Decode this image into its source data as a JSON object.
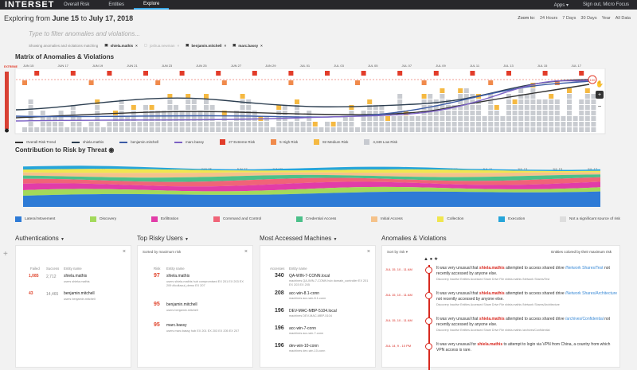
{
  "app": {
    "logo": "INTERSET",
    "nav": [
      "Overall Risk",
      "Entities",
      "Explore"
    ],
    "active_nav": 2,
    "apps_label": "Apps",
    "signout_label": "Sign out, Micro Focus"
  },
  "header": {
    "title_prefix": "Exploring from ",
    "start": "June 15",
    "to": " to ",
    "end": "July 17, 2018",
    "zoom_label": "Zoom to:",
    "zoom_options": [
      "24 Hours",
      "7 Days",
      "30 Days",
      "Year",
      "All Data"
    ]
  },
  "filter": {
    "placeholder": "Type to filter anomalies and violations...",
    "showing_label": "Showing anomalies and violations matching",
    "chips": [
      {
        "label": "shiela.mathis",
        "dim": false
      },
      {
        "label": "joshua.newman",
        "dim": true
      },
      {
        "label": "benjamin.mitchell",
        "dim": false
      },
      {
        "label": "marc.bassy",
        "dim": false
      }
    ]
  },
  "matrix": {
    "title": "Matrix of Anomalies & Violations",
    "extreme_label": "EXTREME",
    "dates": [
      "JUN 15",
      "JUN 17",
      "JUN 19",
      "JUN 21",
      "JUN 23",
      "JUN 25",
      "JUN 27",
      "JUN 29",
      "JUL 01",
      "JUL 03",
      "JUL 05",
      "JUL 07",
      "JUL 09",
      "JUL 11",
      "JUL 13",
      "JUL 15",
      "JUL 17"
    ],
    "badge_value": "100",
    "legend": [
      {
        "kind": "line",
        "label": "Overall Risk Trend",
        "color": "#333333"
      },
      {
        "kind": "line",
        "label": "shiela.mathis",
        "color": "#2c3e50"
      },
      {
        "kind": "line",
        "label": "benjamin.mitchell",
        "color": "#3b5ba5"
      },
      {
        "kind": "line",
        "label": "marc.bassy",
        "color": "#7b61c4"
      },
      {
        "kind": "box",
        "label": "27 Extreme Risk",
        "color": "#e23c2a"
      },
      {
        "kind": "box",
        "label": "5 High Risk",
        "color": "#f08a4b"
      },
      {
        "kind": "box",
        "label": "82 Medium Risk",
        "color": "#f5b942"
      },
      {
        "kind": "box",
        "label": "4,349 Low Risk",
        "color": "#c7cad0"
      }
    ]
  },
  "contribution": {
    "title": "Contribution to Risk by Threat",
    "dates": [
      "JUN 15",
      "JUN 17",
      "JUN 19",
      "JUN 21",
      "JUN 23",
      "JUN 25",
      "JUN 27",
      "JUN 29",
      "JUL 01",
      "JUL 03",
      "JUL 05",
      "JUL 07",
      "JUL 09",
      "JUL 11",
      "JUL 13",
      "JUL 15",
      "JUL 17"
    ],
    "legend": [
      {
        "label": "Lateral Movement",
        "color": "#2e7bd6"
      },
      {
        "label": "Discovery",
        "color": "#a3d95b"
      },
      {
        "label": "Exfiltration",
        "color": "#e23ca8"
      },
      {
        "label": "Command and Control",
        "color": "#f06478"
      },
      {
        "label": "Credential Access",
        "color": "#4cc08a"
      },
      {
        "label": "Initial Access",
        "color": "#f5c28a"
      },
      {
        "label": "Collection",
        "color": "#f0e64f"
      },
      {
        "label": "Execution",
        "color": "#26a5d9"
      },
      {
        "label": "Not a significant source of risk",
        "color": "#dddddd"
      }
    ]
  },
  "authentications": {
    "title": "Authentications",
    "col_failed": "Failed",
    "col_success": "Success",
    "col_entity": "Entity name",
    "rows": [
      {
        "failed": "1,085",
        "success": "2,712",
        "name": "shiela.mathis",
        "sub": "users     shiela.mathis"
      },
      {
        "failed": "43",
        "success": "14,465",
        "name": "benjamin.mitchell",
        "sub": "users     benjamin.mitchell"
      }
    ]
  },
  "risky_users": {
    "title": "Top Risky Users",
    "sort_label": "Sorted by maximum risk",
    "col_risk": "Risk",
    "col_entity": "Entity name",
    "rows": [
      {
        "risk": "97",
        "name": "shiela.mathis",
        "sub": "users   shiela.mathis   hub   compromised   EX 201   EX 203   EX 209   #Icoltacul_demo   EX 207"
      },
      {
        "risk": "95",
        "name": "benjamin.mitchell",
        "sub": "users   benjamin.mitchell"
      },
      {
        "risk": "95",
        "name": "marc.bassy",
        "sub": "users   marc.bassy   hub   EX 201   EX 203   EX 205   EX 207"
      }
    ]
  },
  "machines": {
    "title": "Most Accessed Machines",
    "col_access": "Accesses",
    "col_entity": "Entity name",
    "rows": [
      {
        "count": "340",
        "name": "QA-WIN-7-CONN.local",
        "sub": "machines   QA-WIN-7-CONN   hub   domain_controller   EX 201   EX 203   EX 205"
      },
      {
        "count": "208",
        "name": "acc-win-8.1-conn",
        "sub": "machines   acc-win-8.1-conn"
      },
      {
        "count": "196",
        "name": "DEV-MAC-MBP-5104.local",
        "sub": "machines   DEV-MAC-MBP-5104"
      },
      {
        "count": "196",
        "name": "acc-win-7-conn",
        "sub": "machines   acc-win-7-conn"
      },
      {
        "count": "196",
        "name": "dev-win-10-conn",
        "sub": "machines   dev-win-10-conn"
      }
    ]
  },
  "anomalies": {
    "title": "Anomalies & Violations",
    "sort_label": "Sort by risk",
    "colored_label": "Entities colored by their maximum risk",
    "items": [
      {
        "date": "JUL 15, 10 - 11 AM",
        "score": "100",
        "pre": "It was very unusual that ",
        "user": "shiela.mathis",
        "mid": " attempted to access shared drive ",
        "path": "/Network Shares/Test",
        "post": " not recently accessed by anyone else.",
        "meta": "Discovery     Inactive Entities Accessed     Share Drive File     shiela.mathis     /Network Shares/Test"
      },
      {
        "date": "JUL 15, 10 - 11 AM",
        "score": "100",
        "pre": "It was very unusual that ",
        "user": "shiela.mathis",
        "mid": " attempted to access shared drive ",
        "path": "/Network Shares/Architecture",
        "post": " not recently accessed by anyone else.",
        "meta": "Discovery     Inactive Entities Accessed     Share Drive File     shiela.mathis     /Network Shares/Architecture"
      },
      {
        "date": "JUL 15, 10 - 11 AM",
        "score": "100",
        "pre": "It was very unusual that ",
        "user": "shiela.mathis",
        "mid": " attempted to access shared drive ",
        "path": "/archives/Confidential",
        "post": " not recently accessed by anyone else.",
        "meta": "Discovery     Inactive Entities Accessed     Share Drive File     shiela.mathis     /archives/Confidential"
      },
      {
        "date": "JUL 14, 9 - 10 PM",
        "score": "100",
        "pre": "It was very unusual for ",
        "user": "shiela.mathis",
        "mid": " to attempt to login via VPN from China, a country from which VPN access is rare.",
        "path": "",
        "post": "",
        "meta": ""
      }
    ]
  }
}
